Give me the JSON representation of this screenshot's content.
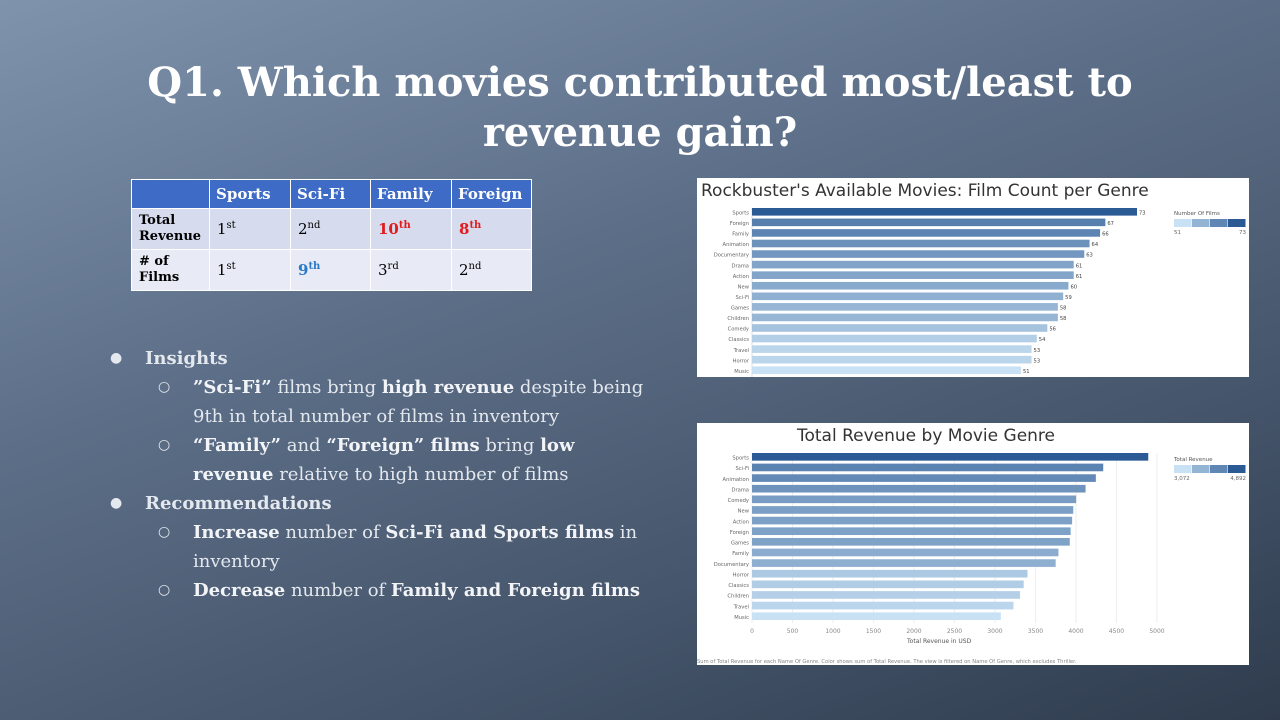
{
  "slide": {
    "title": "Q1. Which movies contributed most/least to revenue gain?"
  },
  "table": {
    "headers": [
      "",
      "Sports",
      "Sci-Fi",
      "Family",
      "Foreign"
    ],
    "row_total_revenue": {
      "label": "Total Revenue",
      "cells": [
        {
          "num": "1",
          "sup": "st"
        },
        {
          "num": "2",
          "sup": "nd"
        },
        {
          "num": "10",
          "sup": "th"
        },
        {
          "num": "8",
          "sup": "th"
        }
      ]
    },
    "row_num_films": {
      "label": "# of Films",
      "cells": [
        {
          "num": "1",
          "sup": "st"
        },
        {
          "num": "9",
          "sup": "th"
        },
        {
          "num": "3",
          "sup": "rd"
        },
        {
          "num": "2",
          "sup": "nd"
        }
      ]
    },
    "colors": {
      "header": "#3d6bc5",
      "highlight_red": "#e11b1b",
      "highlight_blue": "#2a78c6"
    }
  },
  "notes": {
    "insights_heading": "Insights",
    "insight1": {
      "a": "”Sci-Fi”",
      "b": " films bring ",
      "c": "high revenue",
      "d": " despite being 9th in total number of films in inventory"
    },
    "insight2": {
      "a": "“Family”",
      "b": " and ",
      "c": "“Foreign” films",
      "d": " bring ",
      "e": "low revenue",
      "f": " relative to high number of films"
    },
    "recommendations_heading": "Recommendations",
    "rec1": {
      "a": "Increase",
      "b": " number of ",
      "c": "Sci-Fi and Sports films",
      "d": " in inventory"
    },
    "rec2": {
      "a": "Decrease",
      "b": " number of ",
      "c": "Family and Foreign films"
    }
  },
  "chart_data": [
    {
      "type": "bar",
      "orientation": "horizontal",
      "title": "Rockbuster's Available Movies: Film Count per Genre",
      "categories": [
        "Sports",
        "Foreign",
        "Family",
        "Animation",
        "Documentary",
        "Drama",
        "Action",
        "New",
        "Sci-Fi",
        "Games",
        "Children",
        "Comedy",
        "Classics",
        "Travel",
        "Horror",
        "Music"
      ],
      "values": [
        73,
        67,
        66,
        64,
        63,
        61,
        61,
        60,
        59,
        58,
        58,
        56,
        54,
        53,
        53,
        51
      ],
      "legend": {
        "title": "Number Of Films",
        "min_label": "51",
        "max_label": "73",
        "placement": "top-right"
      },
      "color_range": [
        "#c9e1f4",
        "#2b5a94"
      ],
      "xlim": [
        0,
        73
      ]
    },
    {
      "type": "bar",
      "orientation": "horizontal",
      "title": "Total Revenue by Movie Genre",
      "categories": [
        "Sports",
        "Sci-Fi",
        "Animation",
        "Drama",
        "Comedy",
        "New",
        "Action",
        "Foreign",
        "Games",
        "Family",
        "Documentary",
        "Horror",
        "Classics",
        "Children",
        "Travel",
        "Music"
      ],
      "values": [
        4892,
        4336,
        4245,
        4118,
        4002,
        3966,
        3952,
        3934,
        3923,
        3783,
        3749,
        3401,
        3354,
        3309,
        3228,
        3072
      ],
      "xlabel": "Total Revenue in USD",
      "xticks": [
        "0",
        "500",
        "1000",
        "1500",
        "2000",
        "2500",
        "3000",
        "3500",
        "4000",
        "4500",
        "5000"
      ],
      "xlim": [
        0,
        5000
      ],
      "legend": {
        "title": "Total Revenue",
        "min_label": "3,072",
        "max_label": "4,892",
        "placement": "top-right"
      },
      "footnote": "Sum of Total Revenue for each Name Of Genre. Color shows sum of Total Revenue. The view is filtered on Name Of Genre, which excludes Thriller.",
      "color_range": [
        "#c9e1f4",
        "#2b5a94"
      ]
    }
  ]
}
